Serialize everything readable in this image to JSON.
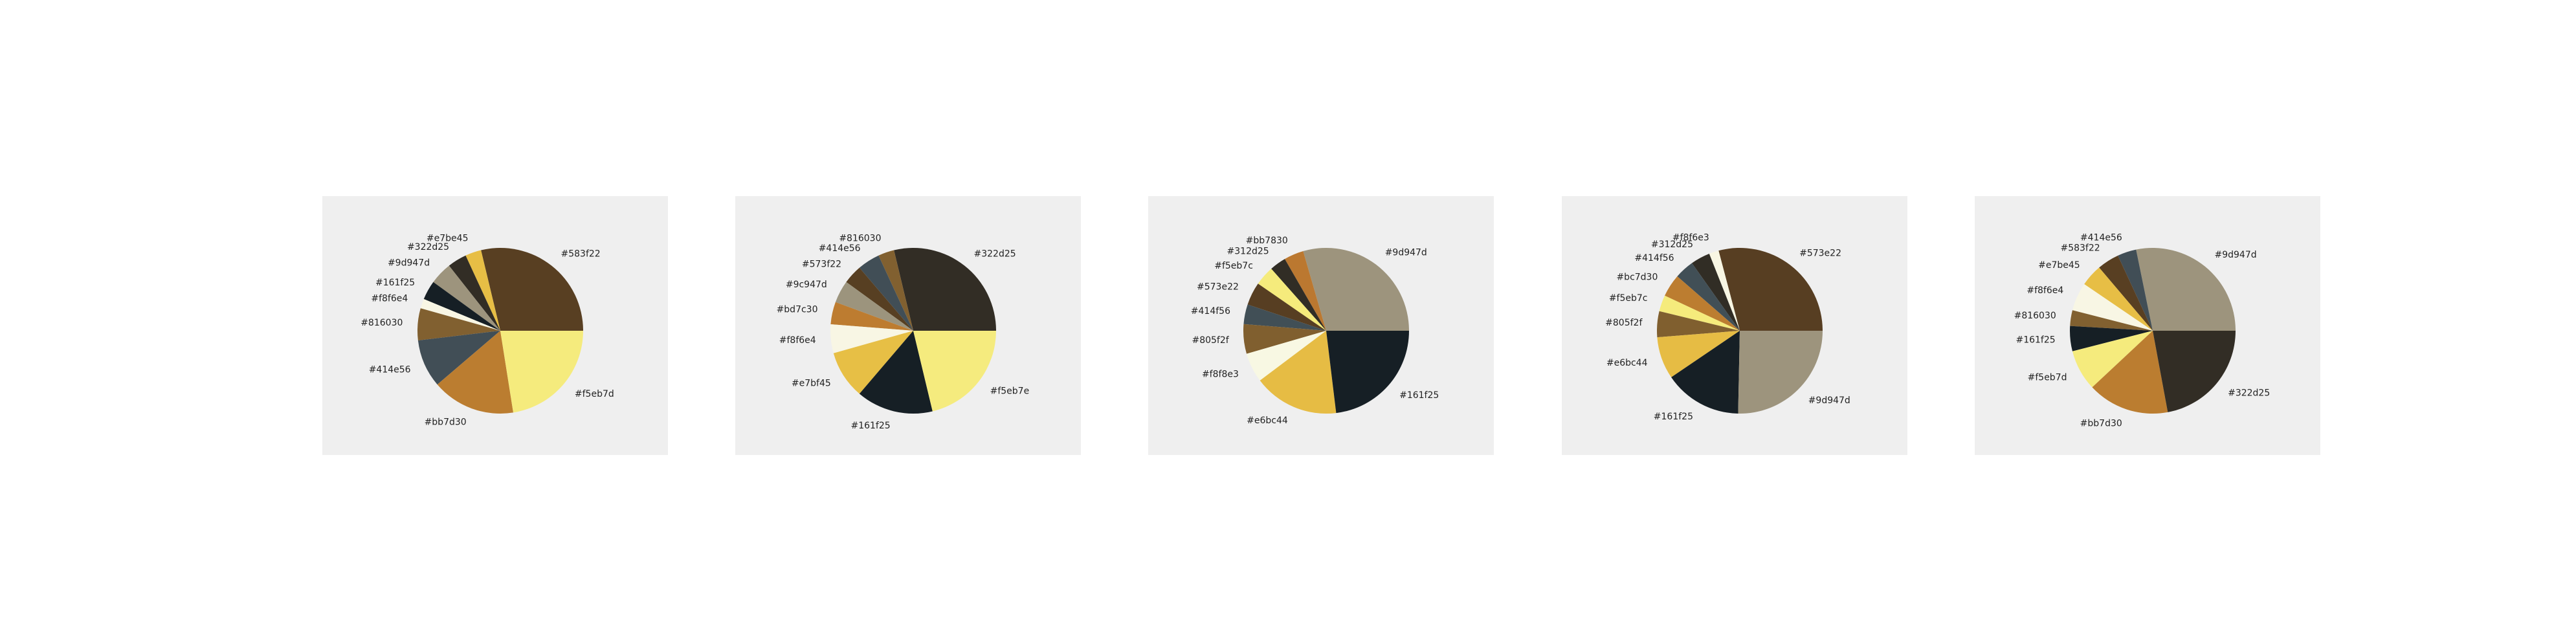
{
  "chart_data": [
    {
      "type": "pie",
      "slices": [
        {
          "label": "#583f22",
          "value": 23.0,
          "color": "#583f22"
        },
        {
          "label": "#e7be45",
          "value": 2.5,
          "color": "#e7be45"
        },
        {
          "label": "#322d25",
          "value": 3.0,
          "color": "#322d25"
        },
        {
          "label": "#9d947d",
          "value": 3.5,
          "color": "#9d947d"
        },
        {
          "label": "#161f25",
          "value": 3.0,
          "color": "#161f25"
        },
        {
          "label": "#f8f6e4",
          "value": 1.5,
          "color": "#f8f6e4"
        },
        {
          "label": "#816030",
          "value": 5.0,
          "color": "#816030"
        },
        {
          "label": "#414e56",
          "value": 7.5,
          "color": "#414e56"
        },
        {
          "label": "#bb7d30",
          "value": 13.0,
          "color": "#bb7d30"
        },
        {
          "label": "#f5eb7d",
          "value": 18.0,
          "color": "#f5eb7d"
        }
      ]
    },
    {
      "type": "pie",
      "slices": [
        {
          "label": "#322d25",
          "value": 23.0,
          "color": "#322d25"
        },
        {
          "label": "#816030",
          "value": 2.5,
          "color": "#816030"
        },
        {
          "label": "#414e56",
          "value": 3.5,
          "color": "#414e56"
        },
        {
          "label": "#573f22",
          "value": 3.0,
          "color": "#573f22"
        },
        {
          "label": "#9c947d",
          "value": 3.5,
          "color": "#9c947d"
        },
        {
          "label": "#bd7c30",
          "value": 3.5,
          "color": "#bd7c30"
        },
        {
          "label": "#f8f6e4",
          "value": 4.5,
          "color": "#f8f6e4"
        },
        {
          "label": "#e7bf45",
          "value": 7.5,
          "color": "#e7bf45"
        },
        {
          "label": "#161f25",
          "value": 12.0,
          "color": "#161f25"
        },
        {
          "label": "#f5eb7e",
          "value": 17.0,
          "color": "#f5eb7e"
        }
      ]
    },
    {
      "type": "pie",
      "slices": [
        {
          "label": "#9d947d",
          "value": 23.0,
          "color": "#9d947d"
        },
        {
          "label": "#bb7830",
          "value": 3.0,
          "color": "#bb7830"
        },
        {
          "label": "#312d25",
          "value": 2.5,
          "color": "#312d25"
        },
        {
          "label": "#f5eb7c",
          "value": 3.0,
          "color": "#f5eb7c"
        },
        {
          "label": "#573e22",
          "value": 3.5,
          "color": "#573e22"
        },
        {
          "label": "#414f56",
          "value": 3.0,
          "color": "#414f56"
        },
        {
          "label": "#805f2f",
          "value": 4.5,
          "color": "#805f2f"
        },
        {
          "label": "#f8f8e3",
          "value": 4.5,
          "color": "#f8f8e3"
        },
        {
          "label": "#e6bc44",
          "value": 13.0,
          "color": "#e6bc44"
        },
        {
          "label": "#161f25",
          "value": 18.0,
          "color": "#161f25"
        }
      ]
    },
    {
      "type": "pie",
      "slices": [
        {
          "label": "#573e22",
          "value": 23.0,
          "color": "#573e22"
        },
        {
          "label": "#f8f6e3",
          "value": 1.5,
          "color": "#f8f6e3"
        },
        {
          "label": "#312d25",
          "value": 3.0,
          "color": "#312d25"
        },
        {
          "label": "#414f56",
          "value": 3.0,
          "color": "#414f56"
        },
        {
          "label": "#bc7d30",
          "value": 3.5,
          "color": "#bc7d30"
        },
        {
          "label": "#f5eb7c",
          "value": 2.5,
          "color": "#f5eb7c"
        },
        {
          "label": "#805f2f",
          "value": 4.0,
          "color": "#805f2f"
        },
        {
          "label": "#e6bc44",
          "value": 6.5,
          "color": "#e6bc44"
        },
        {
          "label": "#161f25",
          "value": 12.0,
          "color": "#161f25"
        },
        {
          "label": "#9d947d",
          "value": 20.0,
          "color": "#9d947d"
        }
      ]
    },
    {
      "type": "pie",
      "slices": [
        {
          "label": "#9d947d",
          "value": 23.0,
          "color": "#9d947d"
        },
        {
          "label": "#414e56",
          "value": 3.0,
          "color": "#414e56"
        },
        {
          "label": "#583f22",
          "value": 3.5,
          "color": "#583f22"
        },
        {
          "label": "#e7be45",
          "value": 3.5,
          "color": "#e7be45"
        },
        {
          "label": "#f8f6e4",
          "value": 4.5,
          "color": "#f8f6e4"
        },
        {
          "label": "#816030",
          "value": 2.5,
          "color": "#816030"
        },
        {
          "label": "#161f25",
          "value": 4.0,
          "color": "#161f25"
        },
        {
          "label": "#f5eb7d",
          "value": 6.5,
          "color": "#f5eb7d"
        },
        {
          "label": "#bb7d30",
          "value": 13.0,
          "color": "#bb7d30"
        },
        {
          "label": "#322d25",
          "value": 18.0,
          "color": "#322d25"
        }
      ]
    }
  ]
}
